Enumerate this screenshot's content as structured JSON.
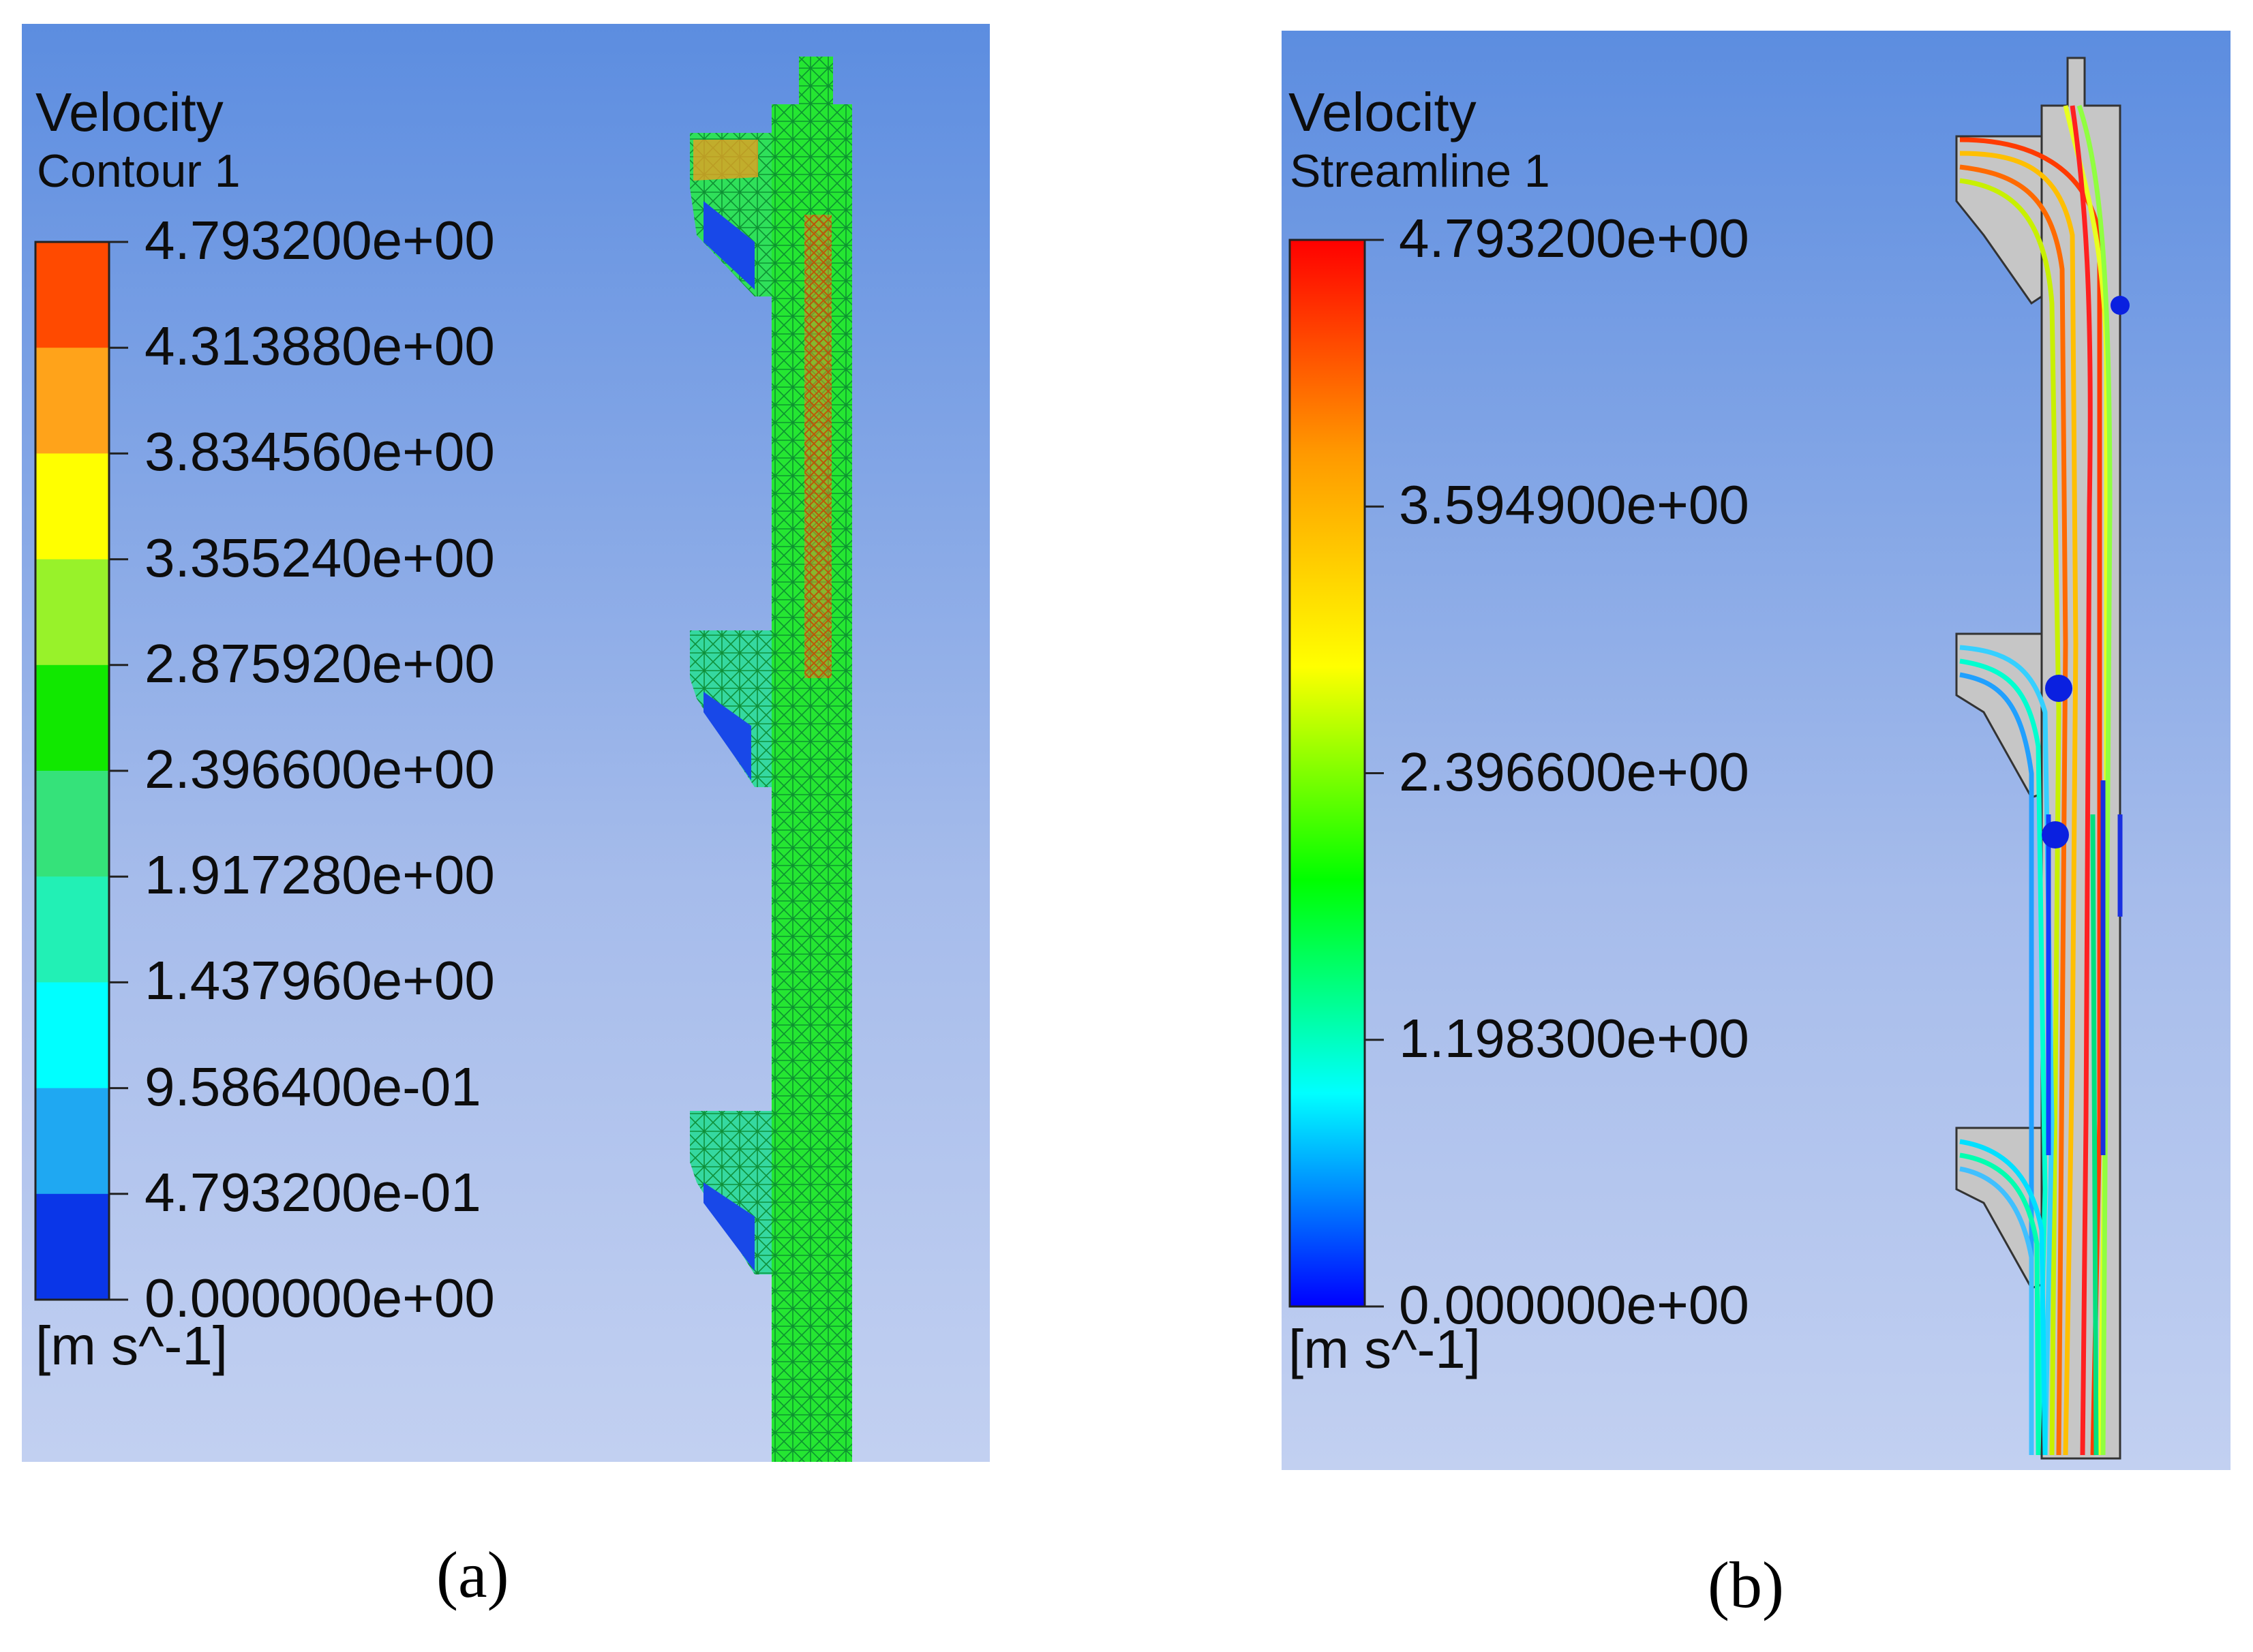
{
  "panel_a": {
    "title": "Velocity",
    "subtitle": "Contour 1",
    "legend_ticks": [
      "4.793200e+00",
      "4.313880e+00",
      "3.834560e+00",
      "3.355240e+00",
      "2.875920e+00",
      "2.396600e+00",
      "1.917280e+00",
      "1.437960e+00",
      "9.586400e-01",
      "4.793200e-01",
      "0.000000e+00"
    ],
    "legend_colors": [
      "#ff4a00",
      "#ffa31a",
      "#ffff00",
      "#98f22a",
      "#11e800",
      "#35e27a",
      "#22f0b5",
      "#00ffff",
      "#1fa8f2",
      "#0a36e8"
    ],
    "unit": "[m s^-1]",
    "caption": "(a)"
  },
  "panel_b": {
    "title": "Velocity",
    "subtitle": "Streamline 1",
    "legend_ticks": [
      "4.793200e+00",
      "3.594900e+00",
      "2.396600e+00",
      "1.198300e+00",
      "0.000000e+00"
    ],
    "legend_gradient": [
      "#ff0000",
      "#ff9900",
      "#ffff00",
      "#00ff00",
      "#00ffff",
      "#0000ff"
    ],
    "unit": "[m s^-1]",
    "caption": "(b)"
  }
}
